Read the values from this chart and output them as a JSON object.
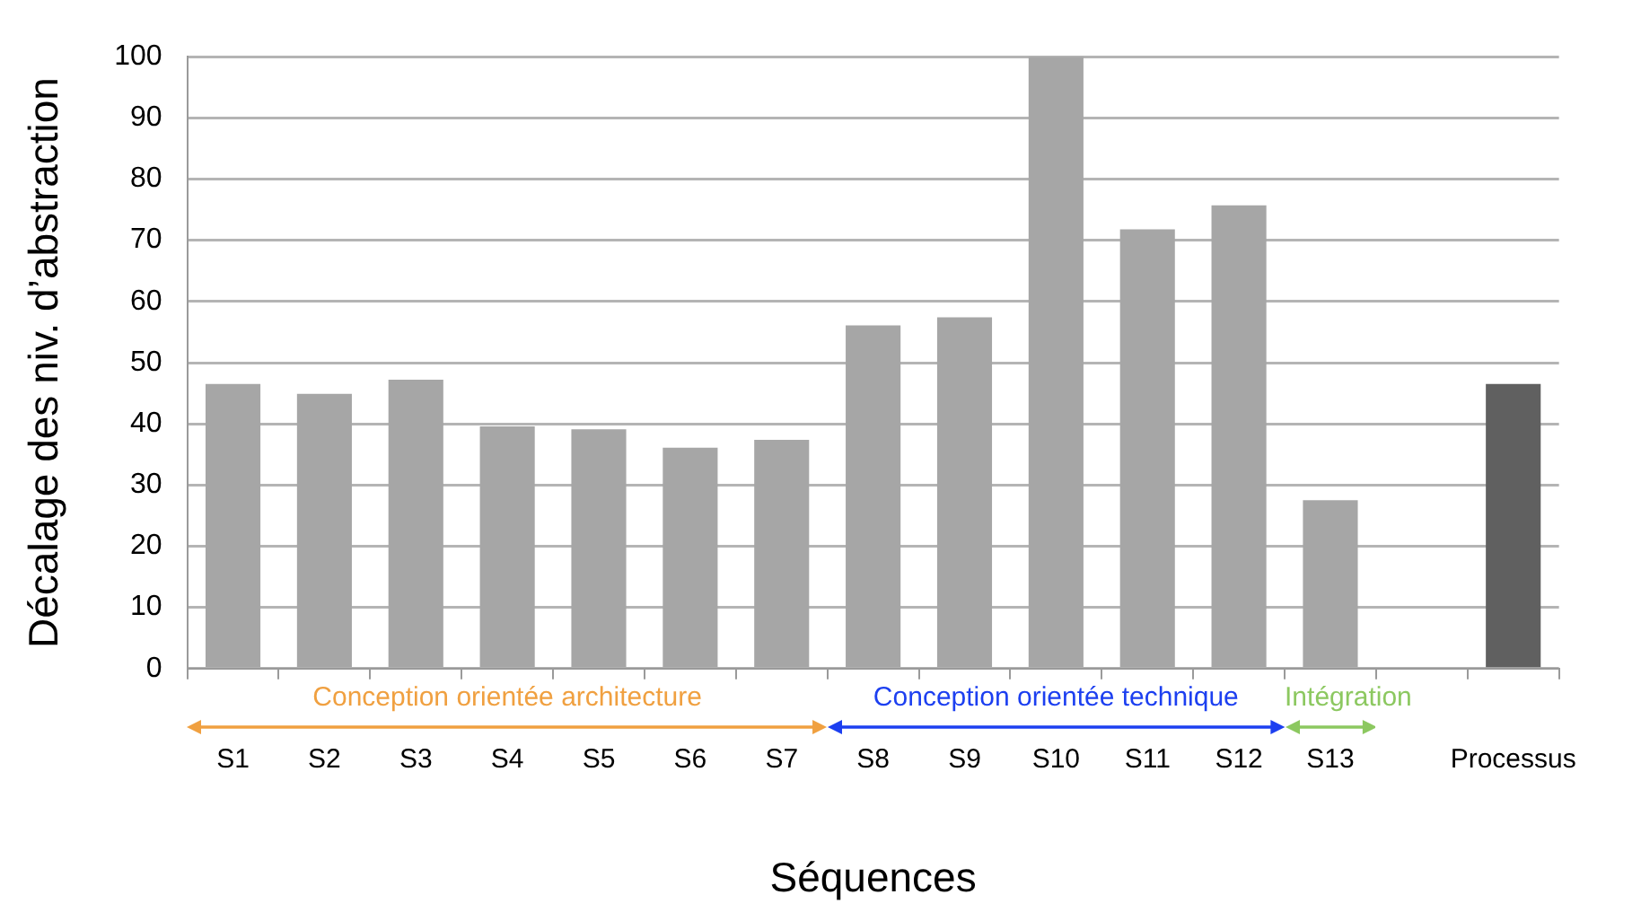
{
  "chart_data": {
    "type": "bar",
    "xlabel": "Séquences",
    "ylabel": "Décalage des niv. d’abstraction",
    "categories": [
      "S1",
      "S2",
      "S3",
      "S4",
      "S5",
      "S6",
      "S7",
      "S8",
      "S9",
      "S10",
      "S11",
      "S12",
      "S13",
      null,
      "Processus"
    ],
    "values": [
      46.5,
      44.9,
      47.2,
      39.6,
      39.1,
      36.1,
      37.4,
      56.1,
      57.4,
      100,
      71.8,
      75.7,
      27.5,
      null,
      46.5
    ],
    "colors": [
      "#a6a6a6",
      "#a6a6a6",
      "#a6a6a6",
      "#a6a6a6",
      "#a6a6a6",
      "#a6a6a6",
      "#a6a6a6",
      "#a6a6a6",
      "#a6a6a6",
      "#a6a6a6",
      "#a6a6a6",
      "#a6a6a6",
      "#a6a6a6",
      "#a6a6a6",
      "#606060"
    ],
    "ylim": [
      0,
      100
    ],
    "yticks": [
      0,
      10,
      20,
      30,
      40,
      50,
      60,
      70,
      80,
      90,
      100
    ],
    "grid": "y",
    "legend": false,
    "annotations": [
      "Conception orientée architecture",
      "Conception orientée technique",
      "Intégration"
    ]
  }
}
